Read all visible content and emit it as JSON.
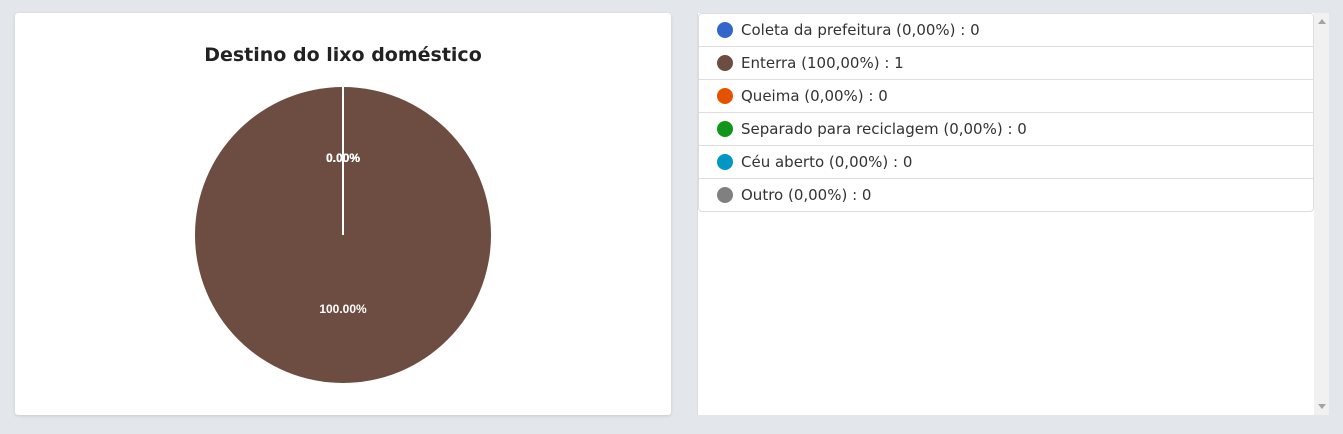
{
  "chart_data": {
    "type": "pie",
    "title": "Destino do lixo doméstico",
    "categories": [
      "Coleta da prefeitura",
      "Enterra",
      "Queima",
      "Separado para reciclagem",
      "Céu aberto",
      "Outro"
    ],
    "values": [
      0,
      1,
      0,
      0,
      0,
      0
    ],
    "percent_labels": [
      "0.00%",
      "100.00%",
      "0.00%",
      "0.00%",
      "0.00%",
      "0.00%"
    ],
    "colors": [
      "#3366cc",
      "#6d4c41",
      "#e65100",
      "#109618",
      "#0097c4",
      "#808080"
    ]
  },
  "legend": {
    "items": [
      {
        "label": "Coleta da prefeitura (0,00%) : 0",
        "color": "#3366cc"
      },
      {
        "label": "Enterra (100,00%) : 1",
        "color": "#6d4c41"
      },
      {
        "label": "Queima (0,00%) : 0",
        "color": "#e65100"
      },
      {
        "label": "Separado para reciclagem (0,00%) : 0",
        "color": "#109618"
      },
      {
        "label": "Céu aberto (0,00%) : 0",
        "color": "#0097c4"
      },
      {
        "label": "Outro (0,00%) : 0",
        "color": "#808080"
      }
    ]
  }
}
